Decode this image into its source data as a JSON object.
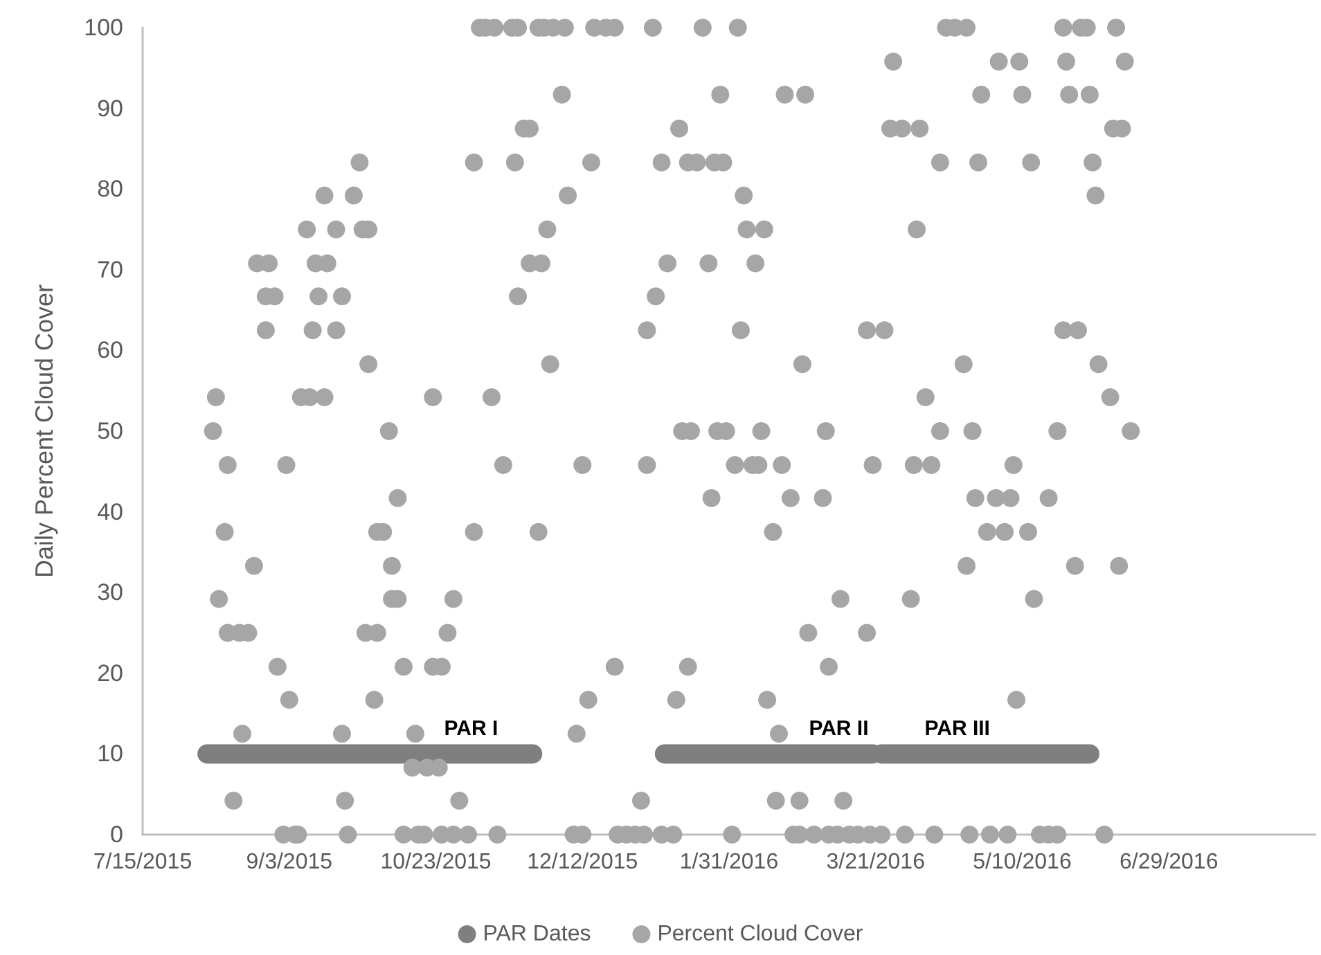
{
  "chart_data": {
    "type": "scatter",
    "ylabel": "Daily Percent Cloud Cover",
    "xlim": [
      "2015-07-15",
      "2016-08-18"
    ],
    "xticks": [
      {
        "value": "2015-07-15",
        "label": "7/15/2015"
      },
      {
        "value": "2015-09-03",
        "label": "9/3/2015"
      },
      {
        "value": "2015-10-23",
        "label": "10/23/2015"
      },
      {
        "value": "2015-12-12",
        "label": "12/12/2015"
      },
      {
        "value": "2016-01-31",
        "label": "1/31/2016"
      },
      {
        "value": "2016-03-21",
        "label": "3/21/2016"
      },
      {
        "value": "2016-05-10",
        "label": "5/10/2016"
      },
      {
        "value": "2016-06-29",
        "label": "6/29/2016"
      }
    ],
    "ylim": [
      0,
      100
    ],
    "yticks": [
      0,
      10,
      20,
      30,
      40,
      50,
      60,
      70,
      80,
      90,
      100
    ],
    "legend": "bottom",
    "annotations": [
      "PAR I",
      "PAR II",
      "PAR III"
    ],
    "series": [
      {
        "name": "PAR Dates",
        "type": "line",
        "line_style": "solid",
        "color": "#7f7f7f",
        "x": [
          "2015-08-06",
          "2015-11-25",
          "2015-12-30",
          "2016-01-09",
          "2016-03-20",
          "2016-03-21",
          "2016-03-23",
          "2016-06-02"
        ],
        "values": [
          10,
          10,
          null,
          10,
          10,
          null,
          10,
          10
        ]
      },
      {
        "name": "Percent Cloud Cover",
        "marker": "circle",
        "color": "#a6a6a6",
        "x": [
          "2015-11-07",
          "2015-11-09",
          "2015-11-12",
          "2015-11-18",
          "2015-11-20",
          "2015-11-27",
          "2015-11-29",
          "2015-12-02",
          "2015-12-06",
          "2015-12-16",
          "2015-12-20",
          "2015-12-23",
          "2016-01-05",
          "2016-01-22",
          "2016-02-03",
          "2016-04-14",
          "2016-04-17",
          "2016-04-21",
          "2016-05-24",
          "2016-05-30",
          "2016-06-01",
          "2016-06-11",
          "2016-03-27",
          "2016-05-02",
          "2016-05-09",
          "2016-05-25",
          "2016-06-14",
          "2015-12-05",
          "2016-01-28",
          "2016-02-19",
          "2016-02-26",
          "2016-04-26",
          "2016-05-10",
          "2016-05-26",
          "2016-06-02",
          "2015-11-22",
          "2015-11-24",
          "2016-01-14",
          "2016-03-26",
          "2016-03-30",
          "2016-04-05",
          "2016-06-10",
          "2016-06-13",
          "2015-09-27",
          "2015-11-05",
          "2015-11-19",
          "2015-12-15",
          "2016-01-08",
          "2016-01-17",
          "2016-01-20",
          "2016-01-26",
          "2016-01-29",
          "2016-04-12",
          "2016-04-25",
          "2016-05-13",
          "2016-06-03",
          "2015-09-15",
          "2015-09-25",
          "2015-12-07",
          "2016-02-05",
          "2016-06-04",
          "2015-09-09",
          "2015-09-19",
          "2015-09-28",
          "2015-09-30",
          "2015-11-30",
          "2016-02-06",
          "2016-02-12",
          "2016-04-04",
          "2015-08-23",
          "2015-08-27",
          "2015-09-12",
          "2015-09-16",
          "2015-11-24",
          "2015-11-28",
          "2016-01-10",
          "2016-01-24",
          "2016-02-09",
          "2015-08-26",
          "2015-08-29",
          "2015-09-13",
          "2015-09-21",
          "2015-11-20",
          "2016-01-06",
          "2015-08-26",
          "2015-09-11",
          "2015-09-19",
          "2016-01-03",
          "2016-02-04",
          "2016-03-18",
          "2016-03-24",
          "2016-05-24",
          "2016-05-29",
          "2015-09-30",
          "2015-12-01",
          "2016-02-25",
          "2016-04-20",
          "2016-06-05",
          "2015-08-09",
          "2015-09-07",
          "2015-09-10",
          "2015-09-15",
          "2015-10-22",
          "2015-11-11",
          "2016-04-07",
          "2016-06-09",
          "2015-08-08",
          "2015-10-07",
          "2016-01-15",
          "2016-01-18",
          "2016-01-27",
          "2016-01-30",
          "2016-02-11",
          "2016-03-04",
          "2016-04-12",
          "2016-04-23",
          "2016-05-22",
          "2016-06-16",
          "2015-08-13",
          "2015-09-02",
          "2015-11-15",
          "2015-12-12",
          "2016-01-03",
          "2016-02-02",
          "2016-02-08",
          "2016-02-10",
          "2016-02-18",
          "2016-03-20",
          "2016-04-03",
          "2016-04-09",
          "2016-05-07",
          "2015-10-10",
          "2016-01-25",
          "2016-02-21",
          "2016-03-03",
          "2016-04-24",
          "2016-05-01",
          "2016-05-06",
          "2016-05-19",
          "2015-08-12",
          "2015-10-03",
          "2015-10-05",
          "2015-11-05",
          "2015-11-27",
          "2016-02-15",
          "2016-04-28",
          "2016-05-04",
          "2016-05-12",
          "2015-08-22",
          "2015-10-08",
          "2016-04-21",
          "2016-05-28",
          "2016-06-12",
          "2015-08-10",
          "2015-10-08",
          "2015-10-10",
          "2015-10-29",
          "2016-03-09",
          "2016-04-02",
          "2016-05-14",
          "2015-08-13",
          "2015-08-17",
          "2015-08-20",
          "2015-09-29",
          "2015-10-03",
          "2015-10-27",
          "2016-02-27",
          "2016-03-18",
          "2015-08-30",
          "2015-10-12",
          "2015-10-22",
          "2015-10-25",
          "2015-12-23",
          "2016-01-17",
          "2016-03-05",
          "2015-09-03",
          "2015-10-02",
          "2015-12-14",
          "2016-01-13",
          "2016-02-13",
          "2016-05-08",
          "2015-08-18",
          "2015-09-21",
          "2015-10-16",
          "2015-12-10",
          "2016-02-17",
          "2015-10-15",
          "2015-10-20",
          "2015-10-24",
          "2015-08-15",
          "2015-09-22",
          "2015-10-31",
          "2016-01-01",
          "2016-02-16",
          "2016-02-24",
          "2016-03-10",
          "2015-09-01",
          "2015-09-05",
          "2015-09-06",
          "2015-09-23",
          "2015-10-12",
          "2015-10-17",
          "2015-10-19",
          "2015-10-25",
          "2015-10-29",
          "2015-11-03",
          "2015-11-13",
          "2015-12-09",
          "2015-12-12",
          "2015-12-24",
          "2015-12-27",
          "2015-12-30",
          "2016-01-02",
          "2016-01-08",
          "2016-01-12",
          "2016-02-01",
          "2016-02-22",
          "2016-02-24",
          "2016-02-29",
          "2016-03-05",
          "2016-03-08",
          "2016-03-12",
          "2016-03-15",
          "2016-03-19",
          "2016-03-23",
          "2016-03-31",
          "2016-04-10",
          "2016-04-22",
          "2016-04-29",
          "2016-05-05",
          "2016-05-16",
          "2016-05-19",
          "2016-05-22",
          "2016-06-07"
        ],
        "values": [
          100,
          100,
          100,
          100,
          100,
          100,
          100,
          100,
          100,
          100,
          100,
          100,
          100,
          100,
          100,
          100,
          100,
          100,
          100,
          100,
          100,
          100,
          95.8,
          95.8,
          95.8,
          95.8,
          95.8,
          91.7,
          91.7,
          91.7,
          91.7,
          91.7,
          91.7,
          91.7,
          91.7,
          87.5,
          87.5,
          87.5,
          87.5,
          87.5,
          87.5,
          87.5,
          87.5,
          83.3,
          83.3,
          83.3,
          83.3,
          83.3,
          83.3,
          83.3,
          83.3,
          83.3,
          83.3,
          83.3,
          83.3,
          83.3,
          79.2,
          79.2,
          79.2,
          79.2,
          79.2,
          75,
          75,
          75,
          75,
          75,
          75,
          75,
          75,
          70.8,
          70.8,
          70.8,
          70.8,
          70.8,
          70.8,
          70.8,
          70.8,
          70.8,
          66.7,
          66.7,
          66.7,
          66.7,
          66.7,
          66.7,
          62.5,
          62.5,
          62.5,
          62.5,
          62.5,
          62.5,
          62.5,
          62.5,
          62.5,
          58.3,
          58.3,
          58.3,
          58.3,
          58.3,
          54.2,
          54.2,
          54.2,
          54.2,
          54.2,
          54.2,
          54.2,
          54.2,
          50,
          50,
          50,
          50,
          50,
          50,
          50,
          50,
          50,
          50,
          50,
          50,
          45.8,
          45.8,
          45.8,
          45.8,
          45.8,
          45.8,
          45.8,
          45.8,
          45.8,
          45.8,
          45.8,
          45.8,
          45.8,
          41.7,
          41.7,
          41.7,
          41.7,
          41.7,
          41.7,
          41.7,
          41.7,
          37.5,
          37.5,
          37.5,
          37.5,
          37.5,
          37.5,
          37.5,
          37.5,
          37.5,
          33.3,
          33.3,
          33.3,
          33.3,
          33.3,
          29.2,
          29.2,
          29.2,
          29.2,
          29.2,
          29.2,
          29.2,
          25,
          25,
          25,
          25,
          25,
          25,
          25,
          25,
          20.8,
          20.8,
          20.8,
          20.8,
          20.8,
          20.8,
          20.8,
          16.7,
          16.7,
          16.7,
          16.7,
          16.7,
          16.7,
          12.5,
          12.5,
          12.5,
          12.5,
          12.5,
          8.3,
          8.3,
          8.3,
          4.2,
          4.2,
          4.2,
          4.2,
          4.2,
          4.2,
          4.2,
          0,
          0,
          0,
          0,
          0,
          0,
          0,
          0,
          0,
          0,
          0,
          0,
          0,
          0,
          0,
          0,
          0,
          0,
          0,
          0,
          0,
          0,
          0,
          0,
          0,
          0,
          0,
          0,
          0,
          0,
          0,
          0,
          0,
          0,
          0,
          0,
          0,
          0
        ]
      }
    ]
  }
}
